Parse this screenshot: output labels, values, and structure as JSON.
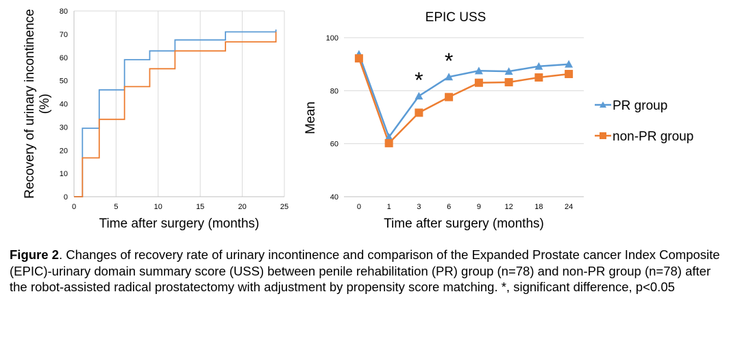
{
  "chart_data": [
    {
      "type": "line",
      "step": true,
      "xlabel": "Time after surgery (months)",
      "ylabel_line1": "Recovery of urinary incontinence",
      "ylabel_line2": "(%)",
      "xlim": [
        0,
        25
      ],
      "ylim": [
        0,
        80
      ],
      "xticks": [
        0,
        5,
        10,
        15,
        20,
        25
      ],
      "yticks": [
        0,
        10,
        20,
        30,
        40,
        50,
        60,
        70,
        80
      ],
      "grid": "vertical",
      "series": [
        {
          "color": "#5B9BD5",
          "x": [
            0,
            1,
            1,
            3,
            3,
            6,
            6,
            9,
            9,
            12,
            12,
            18,
            18,
            24,
            24
          ],
          "y": [
            0,
            0,
            29.5,
            29.5,
            46,
            46,
            59,
            59,
            62.8,
            62.8,
            67.5,
            67.5,
            71,
            71,
            72
          ]
        },
        {
          "color": "#ED7D31",
          "x": [
            0,
            1,
            1,
            3,
            3,
            6,
            6,
            9,
            9,
            12,
            12,
            18,
            18,
            24,
            24
          ],
          "y": [
            0,
            0,
            16.7,
            16.7,
            33.3,
            33.3,
            47.4,
            47.4,
            55.1,
            55.1,
            62.8,
            62.8,
            66.7,
            66.7,
            71
          ]
        }
      ]
    },
    {
      "type": "line",
      "title": "EPIC USS",
      "xlabel": "Time after surgery (months)",
      "ylabel": "Mean",
      "categories": [
        "0",
        "1",
        "3",
        "6",
        "9",
        "12",
        "18",
        "24"
      ],
      "ylim": [
        40,
        100
      ],
      "yticks": [
        40,
        60,
        80,
        100
      ],
      "grid": "horizontal",
      "legend": "right",
      "series": [
        {
          "name": "PR group",
          "color": "#5B9BD5",
          "marker": "triangle",
          "values": [
            93.8,
            62.5,
            78.0,
            85.2,
            87.5,
            87.3,
            89.2,
            90.0
          ]
        },
        {
          "name": "non-PR group",
          "color": "#ED7D31",
          "marker": "square",
          "values": [
            92.2,
            60.2,
            71.7,
            77.6,
            83.0,
            83.2,
            85.0,
            86.3
          ]
        }
      ],
      "annotations": [
        {
          "category": "3",
          "text": "*"
        },
        {
          "category": "6",
          "text": "*"
        }
      ]
    }
  ],
  "caption": {
    "label": "Figure 2",
    "text": ". Changes of recovery rate of urinary incontinence and comparison of the Expanded Prostate cancer Index Composite (EPIC)-urinary domain summary score (USS) between penile rehabilitation (PR) group (n=78) and non-PR group (n=78) after the robot-assisted radical prostatectomy with adjustment by propensity score matching. *, significant difference, p<0.05"
  }
}
